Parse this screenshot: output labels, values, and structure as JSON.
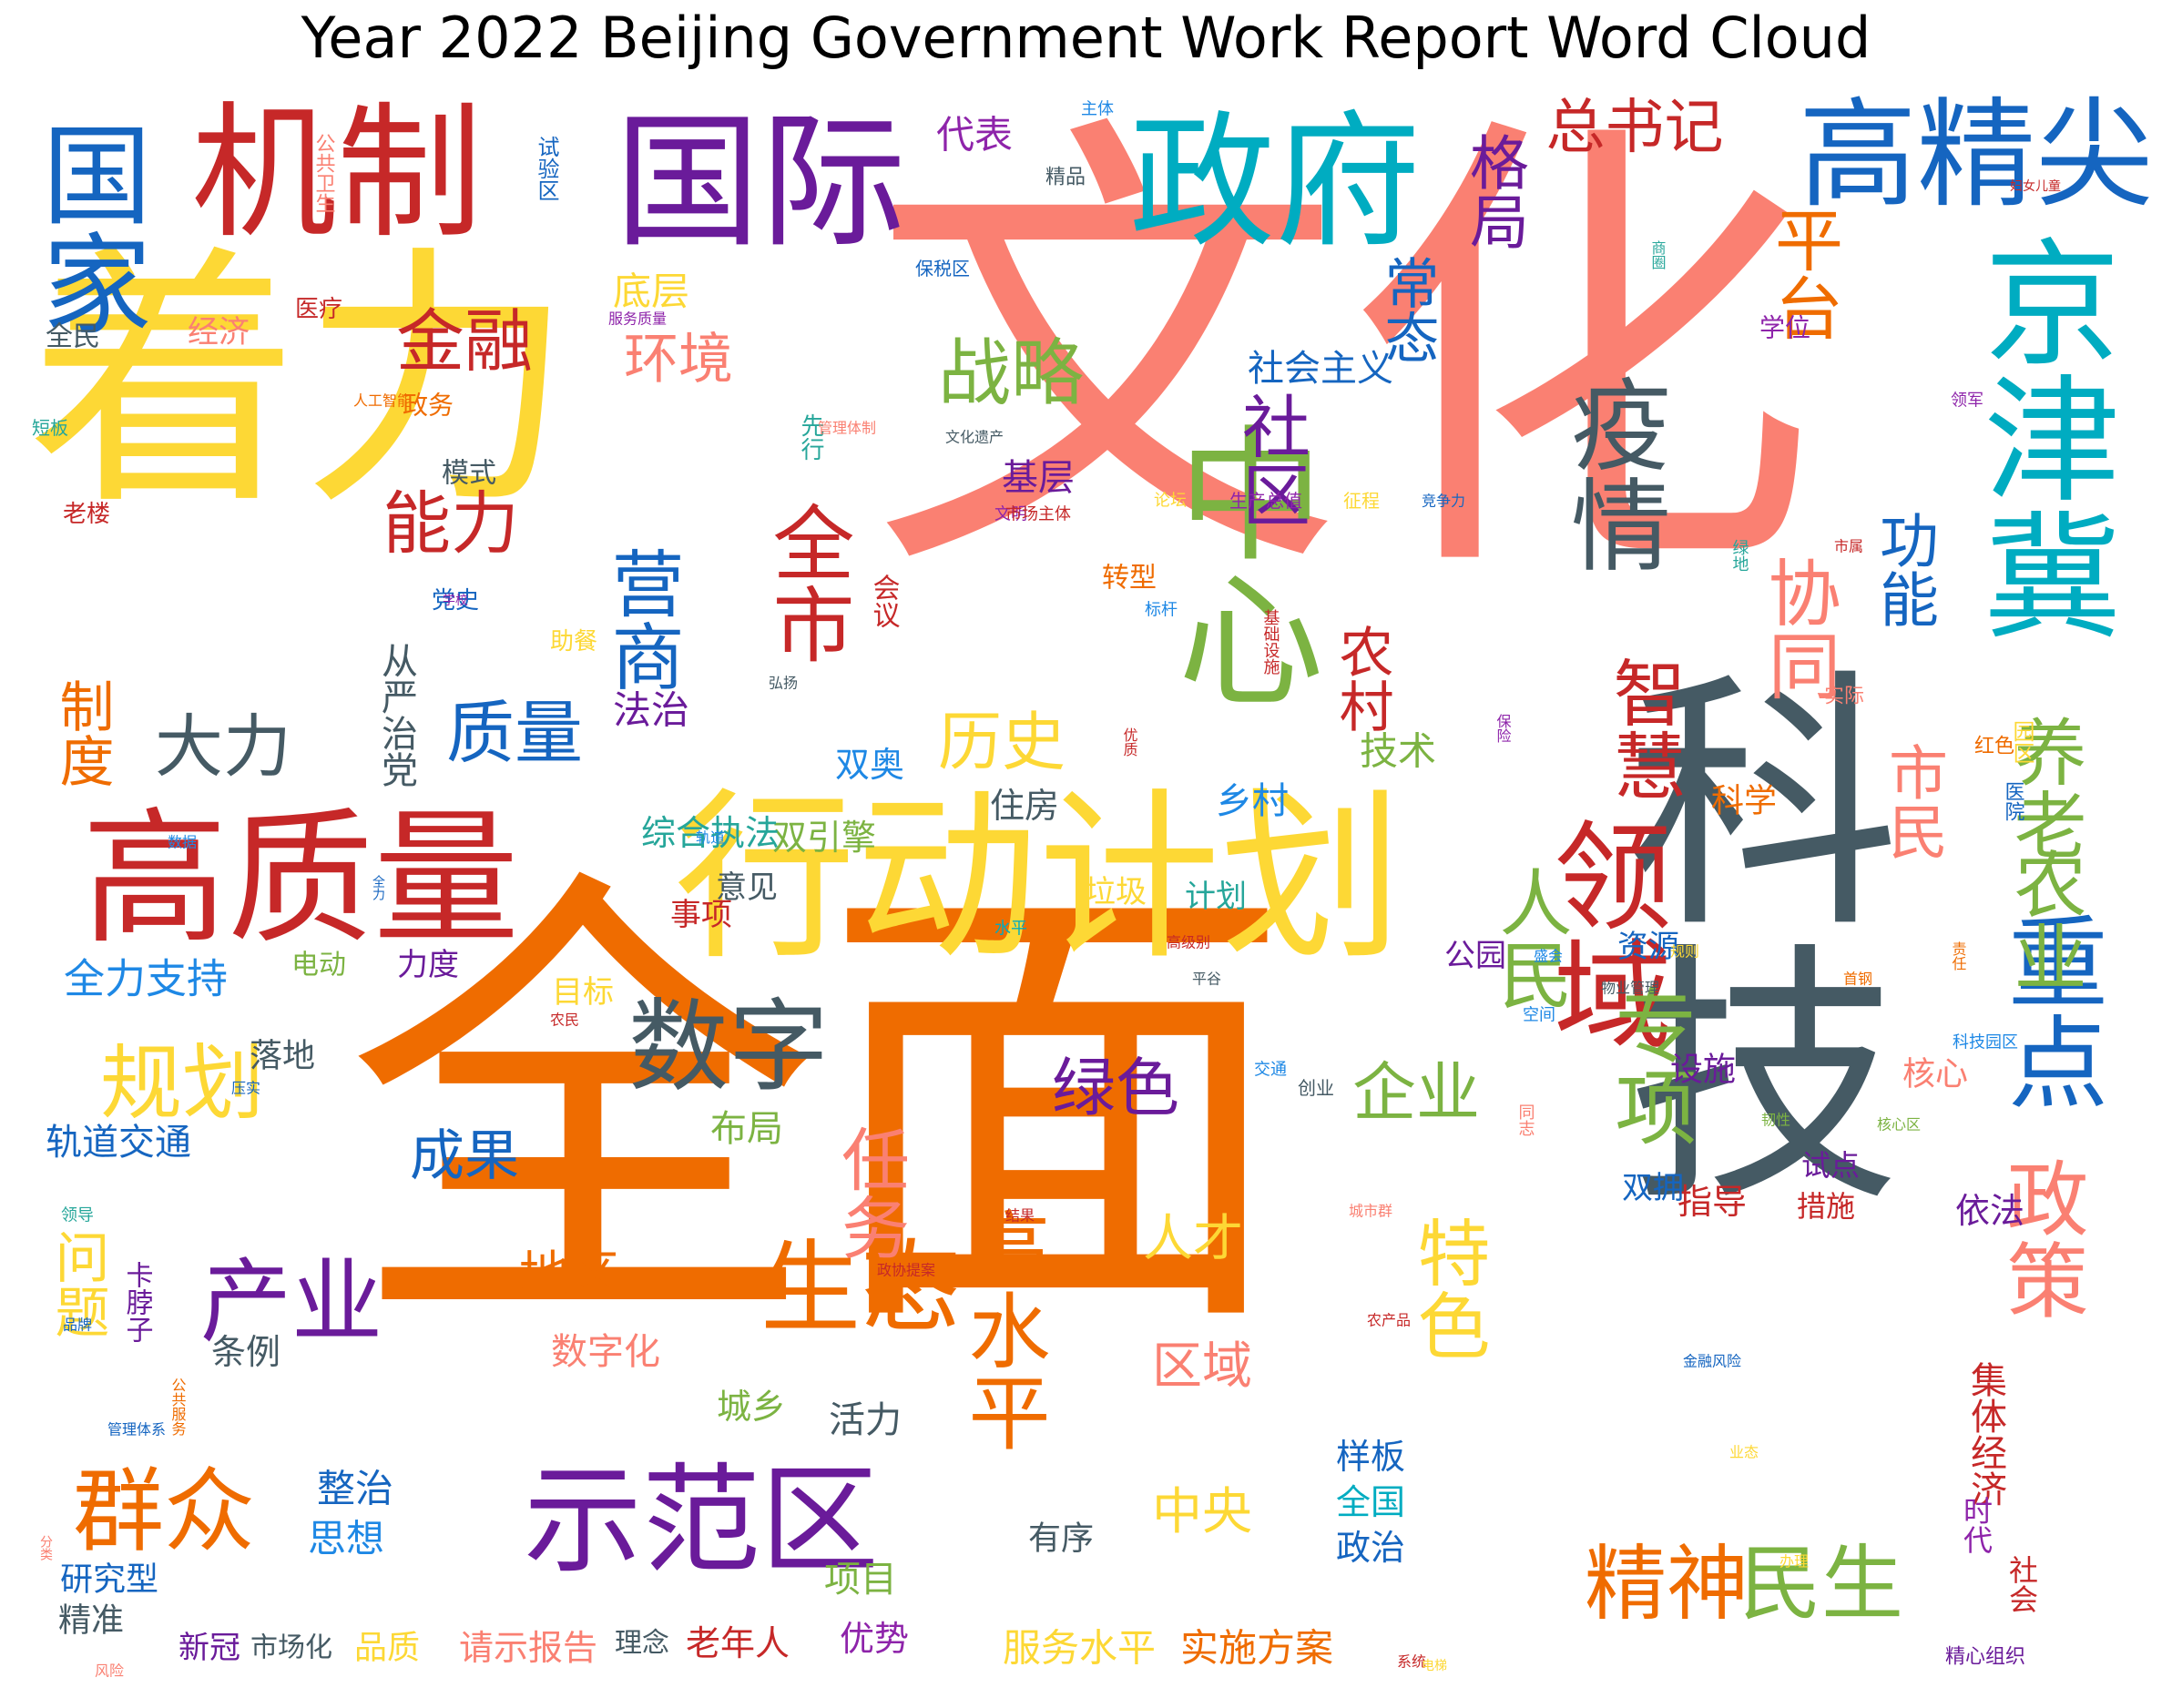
{
  "chart_data": {
    "type": "wordcloud",
    "title": "Year 2022 Beijing Government Work Report Word Cloud",
    "palette": [
      "#ef6c00",
      "#fa8072",
      "#fdd835",
      "#c62828",
      "#6a1b9a",
      "#26a69a",
      "#546e7a",
      "#7cb342",
      "#1565c0",
      "#e53935",
      "#8e24aa",
      "#00acc1"
    ],
    "words": [
      {
        "text": "文化",
        "color": "#fa8072",
        "rank": 1
      },
      {
        "text": "全面",
        "color": "#ef6c00",
        "rank": 2
      },
      {
        "text": "着力",
        "color": "#fdd835",
        "rank": 3
      },
      {
        "text": "科技",
        "color": "#455a64",
        "rank": 4
      },
      {
        "text": "行动计划",
        "color": "#fdd835",
        "rank": 5
      },
      {
        "text": "机制",
        "color": "#c62828",
        "rank": 6
      },
      {
        "text": "高质量",
        "color": "#c62828",
        "rank": 7
      },
      {
        "text": "政府",
        "color": "#00acc1",
        "rank": 8
      },
      {
        "text": "国际",
        "color": "#6a1b9a",
        "rank": 9
      },
      {
        "text": "京津冀",
        "color": "#00acc1",
        "rank": 10
      },
      {
        "text": "中心",
        "color": "#7cb342",
        "rank": 11
      },
      {
        "text": "高精尖",
        "color": "#1565c0",
        "rank": 12
      },
      {
        "text": "领域",
        "color": "#c62828",
        "rank": 13
      },
      {
        "text": "示范区",
        "color": "#6a1b9a",
        "rank": 14
      },
      {
        "text": "国家",
        "color": "#1565c0",
        "rank": 15
      },
      {
        "text": "疫情",
        "color": "#455a64",
        "rank": 16
      },
      {
        "text": "重点",
        "color": "#1565c0",
        "rank": 17
      },
      {
        "text": "生态",
        "color": "#ef6c00",
        "rank": 18
      },
      {
        "text": "数字",
        "color": "#455a64",
        "rank": 19
      },
      {
        "text": "群众",
        "color": "#ef6c00",
        "rank": 20
      },
      {
        "text": "产业",
        "color": "#6a1b9a",
        "rank": 21
      },
      {
        "text": "精神",
        "color": "#ef6c00",
        "rank": 22
      },
      {
        "text": "民生",
        "color": "#7cb342",
        "rank": 23
      },
      {
        "text": "政策",
        "color": "#fa8072",
        "rank": 24
      },
      {
        "text": "专项",
        "color": "#7cb342",
        "rank": 25
      },
      {
        "text": "规划",
        "color": "#fdd835",
        "rank": 26
      },
      {
        "text": "全市",
        "color": "#c62828",
        "rank": 27
      },
      {
        "text": "养老",
        "color": "#7cb342",
        "rank": 28
      },
      {
        "text": "农业",
        "color": "#7cb342",
        "rank": 29
      },
      {
        "text": "战略",
        "color": "#7cb342",
        "rank": 30
      },
      {
        "text": "高水平",
        "color": "#ef6c00",
        "rank": 31
      },
      {
        "text": "特色",
        "color": "#fdd835",
        "rank": 32
      },
      {
        "text": "智慧",
        "color": "#c62828",
        "rank": 33
      },
      {
        "text": "协同",
        "color": "#fa8072",
        "rank": 34
      },
      {
        "text": "人民",
        "color": "#7cb342",
        "rank": 35
      },
      {
        "text": "营商",
        "color": "#1565c0",
        "rank": 36
      },
      {
        "text": "社区",
        "color": "#6a1b9a",
        "rank": 37
      },
      {
        "text": "平台",
        "color": "#ef6c00",
        "rank": 38
      },
      {
        "text": "金融",
        "color": "#c62828",
        "rank": 39
      },
      {
        "text": "能力",
        "color": "#c62828",
        "rank": 40
      },
      {
        "text": "大力",
        "color": "#455a64",
        "rank": 41
      },
      {
        "text": "质量",
        "color": "#1565c0",
        "rank": 42
      },
      {
        "text": "绿色",
        "color": "#6a1b9a",
        "rank": 43
      },
      {
        "text": "企业",
        "color": "#7cb342",
        "rank": 44
      },
      {
        "text": "任务",
        "color": "#fa8072",
        "rank": 45
      },
      {
        "text": "历史",
        "color": "#fdd835",
        "rank": 46
      },
      {
        "text": "格局",
        "color": "#6a1b9a",
        "rank": 47
      },
      {
        "text": "总书记",
        "color": "#c62828",
        "rank": 48
      },
      {
        "text": "功能",
        "color": "#1565c0",
        "rank": 49
      },
      {
        "text": "市民",
        "color": "#fa8072",
        "rank": 50
      },
      {
        "text": "环境",
        "color": "#fa8072",
        "rank": 51
      },
      {
        "text": "常态",
        "color": "#1565c0",
        "rank": 52
      },
      {
        "text": "农村",
        "color": "#c62828",
        "rank": 53
      },
      {
        "text": "制度",
        "color": "#ef6c00",
        "rank": 54
      },
      {
        "text": "问题",
        "color": "#fdd835",
        "rank": 55
      },
      {
        "text": "成果",
        "color": "#1565c0",
        "rank": 56
      },
      {
        "text": "人才",
        "color": "#fdd835",
        "rank": 57
      },
      {
        "text": "区域",
        "color": "#fa8072",
        "rank": 58
      },
      {
        "text": "中央",
        "color": "#fdd835",
        "rank": 59
      },
      {
        "text": "地区",
        "color": "#ef6c00",
        "rank": 60
      },
      {
        "text": "全力支持",
        "color": "#1e88e5",
        "rank": 61
      },
      {
        "text": "服务水平",
        "color": "#fdd835",
        "rank": 62
      },
      {
        "text": "实施方案",
        "color": "#ef6c00",
        "rank": 63
      },
      {
        "text": "社会主义",
        "color": "#1565c0",
        "rank": 64
      },
      {
        "text": "从严治党",
        "color": "#455a64",
        "rank": 65
      },
      {
        "text": "集体经济",
        "color": "#c62828",
        "rank": 66
      },
      {
        "text": "代表",
        "color": "#8e24aa",
        "rank": 67
      },
      {
        "text": "底层",
        "color": "#fdd835",
        "rank": 68
      },
      {
        "text": "法治",
        "color": "#6a1b9a",
        "rank": 69
      },
      {
        "text": "技术",
        "color": "#7cb342",
        "rank": 70
      },
      {
        "text": "基层",
        "color": "#6a1b9a",
        "rank": 71
      },
      {
        "text": "乡村",
        "color": "#1e88e5",
        "rank": 72
      },
      {
        "text": "住房",
        "color": "#455a64",
        "rank": 73
      },
      {
        "text": "双奥",
        "color": "#1e88e5",
        "rank": 74
      },
      {
        "text": "双引擎",
        "color": "#7cb342",
        "rank": 75
      },
      {
        "text": "综合执法",
        "color": "#26a69a",
        "rank": 76
      },
      {
        "text": "布局",
        "color": "#7cb342",
        "rank": 77
      },
      {
        "text": "数字化",
        "color": "#fa8072",
        "rank": 78
      },
      {
        "text": "城乡",
        "color": "#7cb342",
        "rank": 79
      },
      {
        "text": "活力",
        "color": "#455a64",
        "rank": 80
      },
      {
        "text": "项目",
        "color": "#7cb342",
        "rank": 81
      },
      {
        "text": "优势",
        "color": "#8e24aa",
        "rank": 82
      },
      {
        "text": "整治",
        "color": "#1565c0",
        "rank": 83
      },
      {
        "text": "思想",
        "color": "#1e88e5",
        "rank": 84
      },
      {
        "text": "条例",
        "color": "#455a64",
        "rank": 85
      },
      {
        "text": "样板",
        "color": "#1565c0",
        "rank": 86
      },
      {
        "text": "全国",
        "color": "#00acc1",
        "rank": 87
      },
      {
        "text": "政治",
        "color": "#1565c0",
        "rank": 88
      },
      {
        "text": "有序",
        "color": "#455a64",
        "rank": 89
      },
      {
        "text": "落地",
        "color": "#455a64",
        "rank": 90
      },
      {
        "text": "轨道交通",
        "color": "#1565c0",
        "rank": 91
      },
      {
        "text": "研究型",
        "color": "#1565c0",
        "rank": 92
      },
      {
        "text": "精准",
        "color": "#455a64",
        "rank": 93
      },
      {
        "text": "品质",
        "color": "#fdd835",
        "rank": 94
      },
      {
        "text": "请示报告",
        "color": "#fa8072",
        "rank": 95
      },
      {
        "text": "理念",
        "color": "#455a64",
        "rank": 96
      },
      {
        "text": "老年人",
        "color": "#c62828",
        "rank": 97
      },
      {
        "text": "新冠",
        "color": "#6a1b9a",
        "rank": 98
      },
      {
        "text": "市场化",
        "color": "#455a64",
        "rank": 99
      },
      {
        "text": "科学",
        "color": "#ef6c00",
        "rank": 100
      },
      {
        "text": "指导",
        "color": "#c62828",
        "rank": 101
      },
      {
        "text": "依法",
        "color": "#6a1b9a",
        "rank": 102
      },
      {
        "text": "设施",
        "color": "#6a1b9a",
        "rank": 103
      },
      {
        "text": "核心",
        "color": "#fa8072",
        "rank": 104
      },
      {
        "text": "双拥",
        "color": "#1565c0",
        "rank": 105
      },
      {
        "text": "试点",
        "color": "#6a1b9a",
        "rank": 106
      },
      {
        "text": "措施",
        "color": "#c62828",
        "rank": 107
      },
      {
        "text": "时代",
        "color": "#8e24aa",
        "rank": 108
      },
      {
        "text": "社会",
        "color": "#c62828",
        "rank": 109
      },
      {
        "text": "精心组织",
        "color": "#6a1b9a",
        "rank": 110
      },
      {
        "text": "资源",
        "color": "#1565c0",
        "rank": 111
      },
      {
        "text": "公园",
        "color": "#6a1b9a",
        "rank": 112
      },
      {
        "text": "计划",
        "color": "#26a69a",
        "rank": 113
      },
      {
        "text": "垃圾",
        "color": "#fdd835",
        "rank": 114
      },
      {
        "text": "事项",
        "color": "#c62828",
        "rank": 115
      },
      {
        "text": "意见",
        "color": "#455a64",
        "rank": 116
      },
      {
        "text": "目标",
        "color": "#fdd835",
        "rank": 117
      },
      {
        "text": "力度",
        "color": "#6a1b9a",
        "rank": 118
      },
      {
        "text": "电动",
        "color": "#7cb342",
        "rank": 119
      },
      {
        "text": "全民",
        "color": "#455a64",
        "rank": 120
      },
      {
        "text": "经济",
        "color": "#fa8072",
        "rank": 121
      },
      {
        "text": "医疗",
        "color": "#c62828",
        "rank": 122
      },
      {
        "text": "政务",
        "color": "#ef6c00",
        "rank": 123
      },
      {
        "text": "模式",
        "color": "#455a64",
        "rank": 124
      },
      {
        "text": "党史",
        "color": "#1565c0",
        "rank": 125
      },
      {
        "text": "助餐",
        "color": "#fdd835",
        "rank": 126
      },
      {
        "text": "转型",
        "color": "#ef6c00",
        "rank": 127
      },
      {
        "text": "会议",
        "color": "#c62828",
        "rank": 128
      },
      {
        "text": "学位",
        "color": "#8e24aa",
        "rank": 129
      },
      {
        "text": "精品",
        "color": "#455a64",
        "rank": 130
      },
      {
        "text": "老楼",
        "color": "#c62828",
        "rank": 131
      },
      {
        "text": "卡脖子",
        "color": "#6a1b9a",
        "rank": 132
      },
      {
        "text": "先行",
        "color": "#26a69a",
        "rank": 133
      },
      {
        "text": "红色",
        "color": "#ef6c00",
        "rank": 134
      },
      {
        "text": "园区",
        "color": "#fdd835",
        "rank": 135
      },
      {
        "text": "医院",
        "color": "#1565c0",
        "rank": 136
      },
      {
        "text": "实际",
        "color": "#fa8072",
        "rank": 137
      },
      {
        "text": "短板",
        "color": "#26a69a",
        "rank": 138
      },
      {
        "text": "主体",
        "color": "#1e88e5",
        "rank": 139
      },
      {
        "text": "保税区",
        "color": "#1565c0",
        "rank": 140
      },
      {
        "text": "服务质量",
        "color": "#8e24aa",
        "rank": 141
      },
      {
        "text": "人工智能",
        "color": "#ef6c00",
        "rank": 142
      },
      {
        "text": "管理体制",
        "color": "#fa8072",
        "rank": 143
      },
      {
        "text": "文化遗产",
        "color": "#455a64",
        "rank": 144
      },
      {
        "text": "生产总值",
        "color": "#8e24aa",
        "rank": 145
      },
      {
        "text": "征程",
        "color": "#fdd835",
        "rank": 146
      },
      {
        "text": "论坛",
        "color": "#fdd835",
        "rank": 147
      },
      {
        "text": "文明",
        "color": "#8e24aa",
        "rank": 148
      },
      {
        "text": "市场主体",
        "color": "#c62828",
        "rank": 149
      },
      {
        "text": "竞争力",
        "color": "#1565c0",
        "rank": 150
      },
      {
        "text": "标杆",
        "color": "#1e88e5",
        "rank": 151
      },
      {
        "text": "弘扬",
        "color": "#455a64",
        "rank": 152
      },
      {
        "text": "学校",
        "color": "#8e24aa",
        "rank": 153
      },
      {
        "text": "基础设施",
        "color": "#c62828",
        "rank": 154
      },
      {
        "text": "优质",
        "color": "#c62828",
        "rank": 155
      },
      {
        "text": "保险",
        "color": "#8e24aa",
        "rank": 156
      },
      {
        "text": "轨道",
        "color": "#1e88e5",
        "rank": 157
      },
      {
        "text": "水平",
        "color": "#00acc1",
        "rank": 158
      },
      {
        "text": "高级别",
        "color": "#c62828",
        "rank": 159
      },
      {
        "text": "平谷",
        "color": "#455a64",
        "rank": 160
      },
      {
        "text": "盛会",
        "color": "#1e88e5",
        "rank": 161
      },
      {
        "text": "空间",
        "color": "#1e88e5",
        "rank": 162
      },
      {
        "text": "规则",
        "color": "#fdd835",
        "rank": 163
      },
      {
        "text": "交通",
        "color": "#1e88e5",
        "rank": 164
      },
      {
        "text": "创业",
        "color": "#455a64",
        "rank": 165
      },
      {
        "text": "科技园区",
        "color": "#1e88e5",
        "rank": 166
      },
      {
        "text": "首钢",
        "color": "#ef6c00",
        "rank": 167
      },
      {
        "text": "责任",
        "color": "#ef6c00",
        "rank": 168
      },
      {
        "text": "物业管理",
        "color": "#455a64",
        "rank": 169
      },
      {
        "text": "韧性",
        "color": "#7cb342",
        "rank": 170
      },
      {
        "text": "核心区",
        "color": "#7cb342",
        "rank": 171
      },
      {
        "text": "同志",
        "color": "#fa8072",
        "rank": 172
      },
      {
        "text": "结果",
        "color": "#c62828",
        "rank": 173
      },
      {
        "text": "城市群",
        "color": "#fa8072",
        "rank": 174
      },
      {
        "text": "政协提案",
        "color": "#c62828",
        "rank": 175
      },
      {
        "text": "农产品",
        "color": "#c62828",
        "rank": 176
      },
      {
        "text": "金融风险",
        "color": "#1565c0",
        "rank": 177
      },
      {
        "text": "业态",
        "color": "#fdd835",
        "rank": 178
      },
      {
        "text": "办理",
        "color": "#fdd835",
        "rank": 179
      },
      {
        "text": "系统",
        "color": "#c62828",
        "rank": 180
      },
      {
        "text": "电梯",
        "color": "#fdd835",
        "rank": 181
      },
      {
        "text": "风险",
        "color": "#fa8072",
        "rank": 182
      },
      {
        "text": "分类",
        "color": "#fa8072",
        "rank": 183
      },
      {
        "text": "管理体系",
        "color": "#1565c0",
        "rank": 184
      },
      {
        "text": "公共服务",
        "color": "#ef6c00",
        "rank": 185
      },
      {
        "text": "品牌",
        "color": "#1565c0",
        "rank": 186
      },
      {
        "text": "领导",
        "color": "#26a69a",
        "rank": 187
      },
      {
        "text": "压实",
        "color": "#1565c0",
        "rank": 188
      },
      {
        "text": "农民",
        "color": "#c62828",
        "rank": 189
      },
      {
        "text": "数据",
        "color": "#1e88e5",
        "rank": 190
      },
      {
        "text": "全力",
        "color": "#1565c0",
        "rank": 191
      },
      {
        "text": "绿地",
        "color": "#26a69a",
        "rank": 192
      },
      {
        "text": "市属",
        "color": "#c62828",
        "rank": 193
      },
      {
        "text": "妇女儿童",
        "color": "#c62828",
        "rank": 194
      },
      {
        "text": "商圈",
        "color": "#26a69a",
        "rank": 195
      },
      {
        "text": "领军",
        "color": "#8e24aa",
        "rank": 196
      },
      {
        "text": "公共卫生",
        "color": "#fa8072",
        "rank": 197
      },
      {
        "text": "试验区",
        "color": "#1565c0",
        "rank": 198
      },
      {
        "text": "经济社会",
        "color": "#fa8072",
        "rank": 199
      },
      {
        "text": "空气质量",
        "color": "#7cb342",
        "rank": 200
      }
    ]
  }
}
